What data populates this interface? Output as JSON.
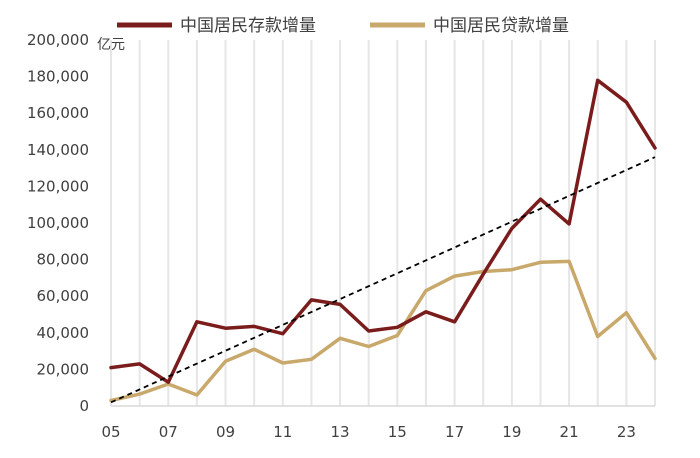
{
  "chart_data": {
    "type": "line",
    "unit_label": "亿元",
    "x": [
      "05",
      "06",
      "07",
      "08",
      "09",
      "10",
      "11",
      "12",
      "13",
      "14",
      "15",
      "16",
      "17",
      "18",
      "19",
      "20",
      "21",
      "22",
      "23",
      "24"
    ],
    "x_tick_labels": [
      "05",
      "07",
      "09",
      "11",
      "13",
      "15",
      "17",
      "19",
      "21",
      "23"
    ],
    "y_tick_labels": [
      "0",
      "20,000",
      "40,000",
      "60,000",
      "80,000",
      "100,000",
      "120,000",
      "140,000",
      "160,000",
      "180,000",
      "200,000"
    ],
    "ylim": [
      0,
      200000
    ],
    "grid": "vertical",
    "legend_position": "top",
    "series": [
      {
        "name": "中国居民存款增量",
        "color": "#7b1c1c",
        "values": [
          21000,
          23000,
          13000,
          46000,
          42500,
          43500,
          39500,
          58000,
          55500,
          41000,
          43000,
          51500,
          46000,
          72000,
          97000,
          113000,
          99500,
          178000,
          166000,
          141000
        ]
      },
      {
        "name": "中国居民贷款增量",
        "color": "#c8a86b",
        "values": [
          3000,
          6500,
          12000,
          6000,
          24500,
          31000,
          23500,
          25500,
          37000,
          32500,
          38500,
          63000,
          71000,
          73500,
          74500,
          78500,
          79000,
          38000,
          51000,
          26000
        ]
      }
    ],
    "trendline": {
      "style": "dashed",
      "color": "#000000",
      "values": [
        2000,
        136000
      ]
    }
  }
}
